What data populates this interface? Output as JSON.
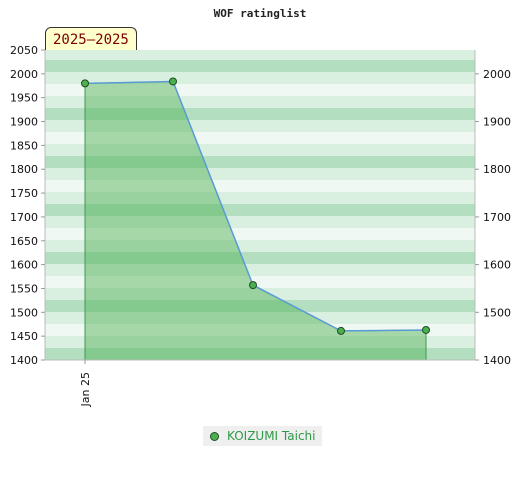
{
  "chart_data": {
    "type": "area",
    "title": "WOF ratinglist",
    "period_label": "2025–2025",
    "x_tick_labels": [
      "Jan 25"
    ],
    "ylim": [
      1400,
      2050
    ],
    "left_ticks": [
      1400,
      1450,
      1500,
      1550,
      1600,
      1650,
      1700,
      1750,
      1800,
      1850,
      1900,
      1950,
      2000,
      2050
    ],
    "right_ticks": [
      1400,
      1500,
      1600,
      1700,
      1800,
      1900,
      2000
    ],
    "series": [
      {
        "name": "KOIZUMI Taichi",
        "color": "#4caf50",
        "line_color": "#5b9bd5",
        "values": [
          1980,
          1984,
          1557,
          1461,
          1463
        ]
      }
    ],
    "legend_position": "bottom-center",
    "background_bands": [
      "#b3dfc0",
      "#d9efe0",
      "#eff8f2",
      "#d9efe0"
    ],
    "grid": true
  }
}
